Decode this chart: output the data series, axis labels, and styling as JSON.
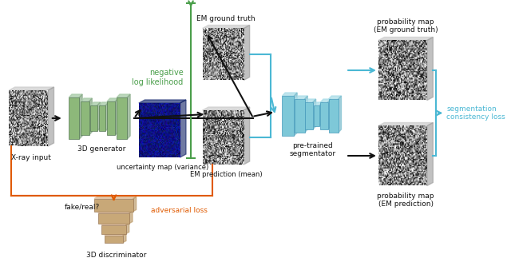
{
  "bg_color": "#ffffff",
  "green_color": "#4a9e4a",
  "black_color": "#111111",
  "orange_color": "#e05a00",
  "blue_color": "#4bb8d4",
  "generator_color": "#8db87a",
  "segmentor_color": "#7ec8d8",
  "discriminator_color": "#c8a878",
  "labels": {
    "xray": "X-ray input",
    "gen3d": "3D generator",
    "uncertainty": "uncertainty map (variance)",
    "em_pred": "EM prediction (mean)",
    "em_gt": "EM ground truth",
    "nll": "negative\nlog likelihood",
    "pretrained": "pre-trained\nsegmentator",
    "prob_gt": "probability map\n(EM ground truth)",
    "prob_pred": "probability map\n(EM prediction)",
    "seg_loss": "segmentation\nconsistency loss",
    "disc3d": "3D discriminator",
    "adv_loss": "adversarial loss",
    "fake_real": "fake/real?"
  }
}
